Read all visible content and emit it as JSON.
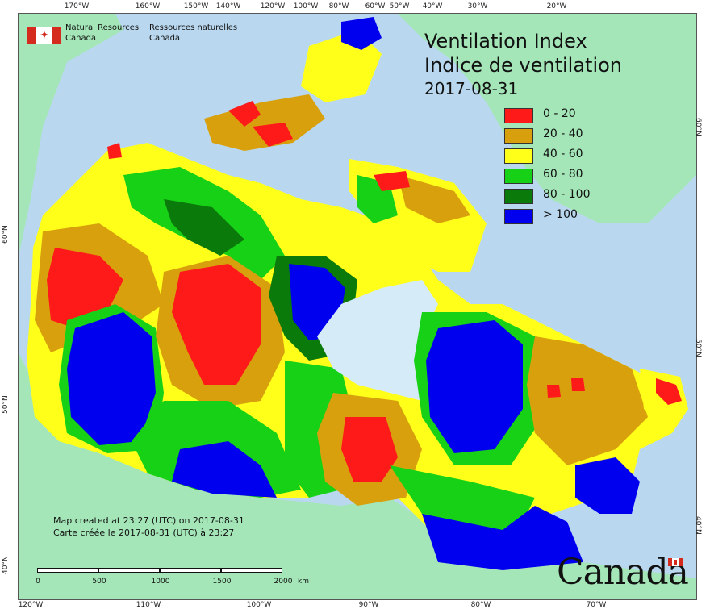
{
  "title": {
    "line1": "Ventilation Index",
    "line2": "Indice de ventilation",
    "date": "2017-08-31"
  },
  "agency": {
    "en_line1": "Natural Resources",
    "en_line2": "Canada",
    "fr_line1": "Ressources naturelles",
    "fr_line2": "Canada"
  },
  "legend": [
    {
      "label": "0 - 20",
      "color": "#ff1a1a"
    },
    {
      "label": "20 - 40",
      "color": "#d9a00d"
    },
    {
      "label": "40 - 60",
      "color": "#ffff1a"
    },
    {
      "label": "60 - 80",
      "color": "#17d117"
    },
    {
      "label": "80 - 100",
      "color": "#0a7a0a"
    },
    {
      "label": "> 100",
      "color": "#0000ee"
    }
  ],
  "creation": {
    "en": "Map created at 23:27 (UTC) on 2017-08-31",
    "fr": "Carte créée le 2017-08-31 (UTC) à 23:27"
  },
  "scalebar": {
    "labels": [
      "0",
      "500",
      "1000",
      "1500",
      "2000"
    ],
    "unit": "km"
  },
  "graticule": {
    "top": [
      "170°W",
      "160°W",
      "150°W",
      "140°W",
      "120°W",
      "100°W",
      "80°W",
      "60°W",
      "50°W",
      "40°W",
      "30°W",
      "20°W"
    ],
    "bottom": [
      "120°W",
      "110°W",
      "100°W",
      "90°W",
      "80°W",
      "70°W"
    ],
    "left": [
      "60°N",
      "50°N",
      "40°N"
    ],
    "right": [
      "60°N",
      "50°N",
      "40°N"
    ]
  },
  "wordmark": "Canada",
  "colors": {
    "ocean": "#b9d8ef",
    "foreign_land": "#a4e6b8",
    "hudson_bay": "#d6ebf8"
  }
}
